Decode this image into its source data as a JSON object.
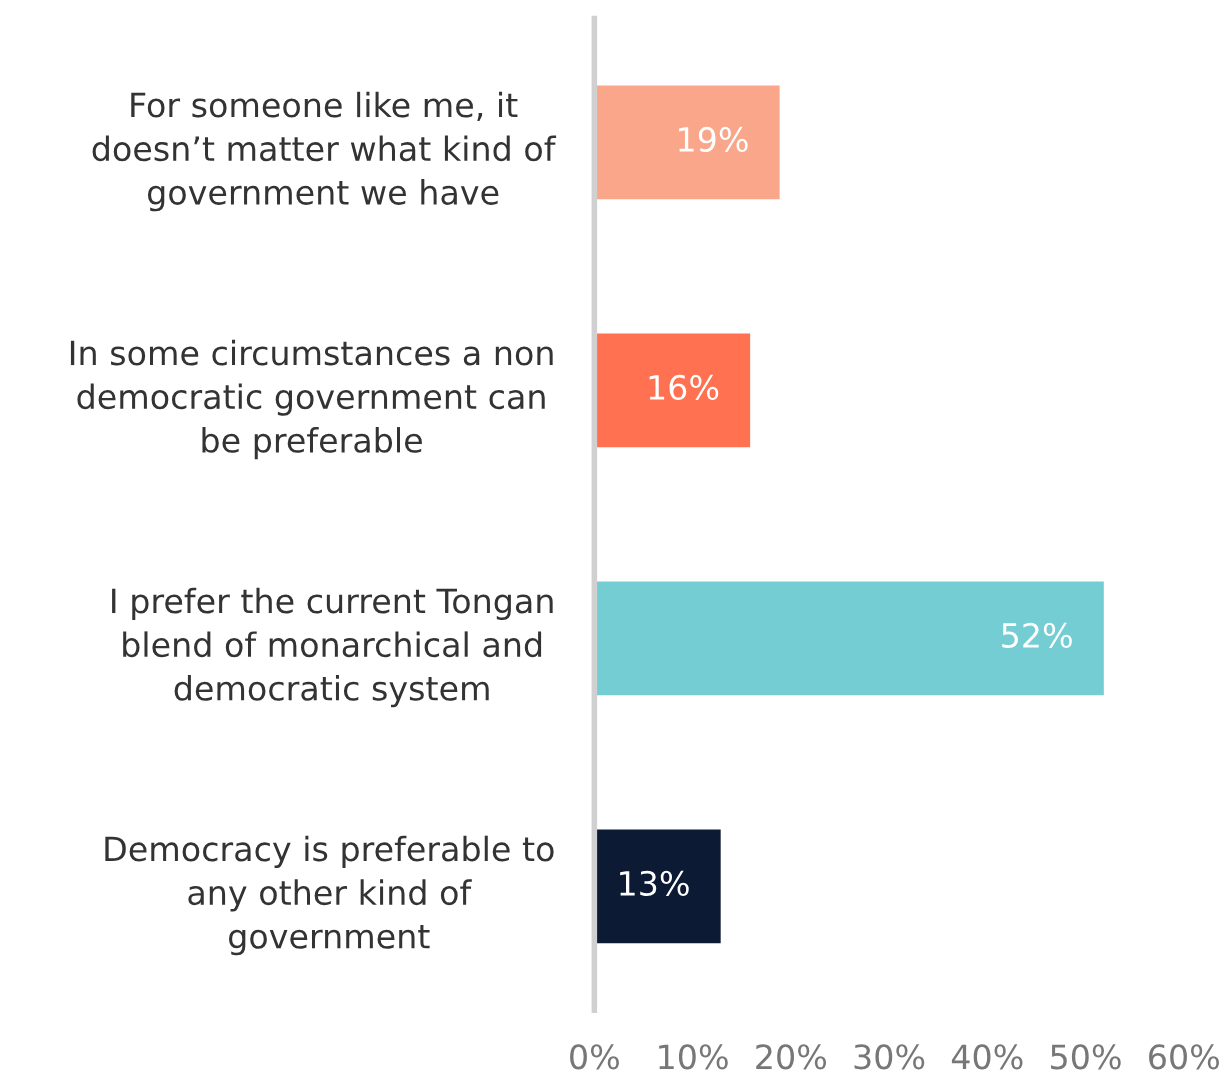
{
  "chart_data": {
    "type": "bar",
    "orientation": "horizontal",
    "categories": [
      "For someone like me, it\ndoesn’t matter what kind of\ngovernment we have",
      "In some circumstances a non\ndemocratic government can\nbe preferable",
      "I prefer the current Tongan\nblend of monarchical and\ndemocratic system",
      "Democracy is preferable to\nany other kind of\ngovernment"
    ],
    "values": [
      19,
      16,
      52,
      13
    ],
    "colors": [
      "#f9a68a",
      "#ff7150",
      "#74cdd3",
      "#0c1a33"
    ],
    "value_labels": [
      "19%",
      "16%",
      "52%",
      "13%"
    ],
    "xlim": [
      0,
      60
    ],
    "xticks": [
      {
        "value": 0,
        "label": "0%"
      },
      {
        "value": 10,
        "label": "10%"
      },
      {
        "value": 20,
        "label": "20%"
      },
      {
        "value": 30,
        "label": "30%"
      },
      {
        "value": 40,
        "label": "40%"
      },
      {
        "value": 50,
        "label": "50%"
      },
      {
        "value": 60,
        "label": "60%"
      }
    ],
    "grid": false,
    "legend": false
  }
}
